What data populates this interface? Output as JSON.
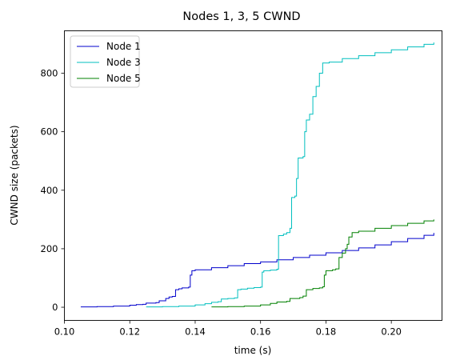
{
  "chart_data": {
    "type": "line",
    "title": "Nodes 1, 3, 5 CWND",
    "xlabel": "time (s)",
    "ylabel": "CWND size (packets)",
    "xlim": [
      0.1,
      0.2155
    ],
    "ylim": [
      -45,
      945
    ],
    "xticks": [
      0.1,
      0.12,
      0.14,
      0.16,
      0.18,
      0.2
    ],
    "xtick_labels": [
      "0.10",
      "0.12",
      "0.14",
      "0.16",
      "0.18",
      "0.20"
    ],
    "yticks": [
      0,
      200,
      400,
      600,
      800
    ],
    "ytick_labels": [
      "0",
      "200",
      "400",
      "600",
      "800"
    ],
    "grid": false,
    "legend": "top-left",
    "series": [
      {
        "name": "Node 1",
        "color": "#0000cc",
        "points": [
          [
            0.105,
            1
          ],
          [
            0.11,
            2
          ],
          [
            0.115,
            4
          ],
          [
            0.12,
            7
          ],
          [
            0.122,
            9
          ],
          [
            0.124,
            10
          ],
          [
            0.125,
            14
          ],
          [
            0.128,
            16
          ],
          [
            0.129,
            22
          ],
          [
            0.131,
            30
          ],
          [
            0.132,
            35
          ],
          [
            0.133,
            37
          ],
          [
            0.134,
            60
          ],
          [
            0.135,
            63
          ],
          [
            0.136,
            66
          ],
          [
            0.138,
            69
          ],
          [
            0.1385,
            110
          ],
          [
            0.139,
            125
          ],
          [
            0.14,
            128
          ],
          [
            0.145,
            135
          ],
          [
            0.15,
            142
          ],
          [
            0.155,
            149
          ],
          [
            0.16,
            155
          ],
          [
            0.165,
            162
          ],
          [
            0.17,
            170
          ],
          [
            0.175,
            178
          ],
          [
            0.18,
            186
          ],
          [
            0.185,
            194
          ],
          [
            0.19,
            203
          ],
          [
            0.195,
            213
          ],
          [
            0.2,
            224
          ],
          [
            0.205,
            235
          ],
          [
            0.21,
            246
          ],
          [
            0.213,
            254
          ]
        ]
      },
      {
        "name": "Node 3",
        "color": "#00bfbf",
        "points": [
          [
            0.125,
            1
          ],
          [
            0.13,
            2
          ],
          [
            0.135,
            4
          ],
          [
            0.14,
            8
          ],
          [
            0.143,
            12
          ],
          [
            0.145,
            17
          ],
          [
            0.147,
            19
          ],
          [
            0.148,
            28
          ],
          [
            0.15,
            30
          ],
          [
            0.152,
            32
          ],
          [
            0.153,
            60
          ],
          [
            0.154,
            62
          ],
          [
            0.156,
            65
          ],
          [
            0.158,
            67
          ],
          [
            0.16,
            69
          ],
          [
            0.1605,
            120
          ],
          [
            0.161,
            125
          ],
          [
            0.163,
            127
          ],
          [
            0.165,
            130
          ],
          [
            0.1655,
            245
          ],
          [
            0.167,
            250
          ],
          [
            0.168,
            255
          ],
          [
            0.169,
            270
          ],
          [
            0.1695,
            375
          ],
          [
            0.1705,
            380
          ],
          [
            0.171,
            440
          ],
          [
            0.1715,
            510
          ],
          [
            0.173,
            515
          ],
          [
            0.1735,
            600
          ],
          [
            0.174,
            640
          ],
          [
            0.175,
            660
          ],
          [
            0.176,
            720
          ],
          [
            0.177,
            755
          ],
          [
            0.178,
            800
          ],
          [
            0.179,
            835
          ],
          [
            0.181,
            838
          ],
          [
            0.185,
            850
          ],
          [
            0.19,
            860
          ],
          [
            0.195,
            870
          ],
          [
            0.2,
            880
          ],
          [
            0.205,
            890
          ],
          [
            0.21,
            899
          ],
          [
            0.213,
            905
          ]
        ]
      },
      {
        "name": "Node 5",
        "color": "#008000",
        "points": [
          [
            0.145,
            1
          ],
          [
            0.15,
            2
          ],
          [
            0.155,
            4
          ],
          [
            0.16,
            8
          ],
          [
            0.163,
            13
          ],
          [
            0.165,
            18
          ],
          [
            0.168,
            20
          ],
          [
            0.169,
            30
          ],
          [
            0.172,
            33
          ],
          [
            0.173,
            38
          ],
          [
            0.174,
            60
          ],
          [
            0.176,
            64
          ],
          [
            0.178,
            66
          ],
          [
            0.179,
            70
          ],
          [
            0.1795,
            110
          ],
          [
            0.18,
            125
          ],
          [
            0.182,
            128
          ],
          [
            0.183,
            131
          ],
          [
            0.184,
            170
          ],
          [
            0.185,
            185
          ],
          [
            0.186,
            200
          ],
          [
            0.1865,
            215
          ],
          [
            0.187,
            240
          ],
          [
            0.188,
            255
          ],
          [
            0.19,
            260
          ],
          [
            0.195,
            270
          ],
          [
            0.2,
            279
          ],
          [
            0.205,
            287
          ],
          [
            0.21,
            295
          ],
          [
            0.213,
            300
          ]
        ]
      }
    ]
  }
}
